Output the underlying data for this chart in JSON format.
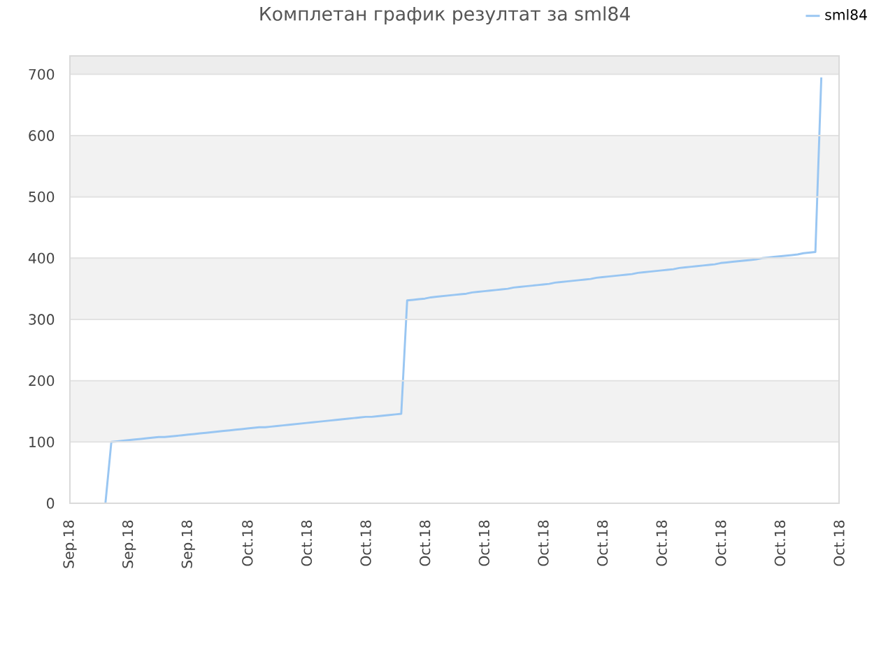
{
  "chart_data": {
    "type": "line",
    "title": "Комплетан график резултат за sml84",
    "categories": [
      "Sep.18",
      null,
      null,
      null,
      null,
      null,
      null,
      null,
      null,
      null,
      "Sep.18",
      null,
      null,
      null,
      null,
      null,
      null,
      null,
      null,
      null,
      "Sep.18",
      null,
      null,
      null,
      null,
      null,
      null,
      null,
      null,
      null,
      "Oct.18",
      null,
      null,
      null,
      null,
      null,
      null,
      null,
      null,
      null,
      "Oct.18",
      null,
      null,
      null,
      null,
      null,
      null,
      null,
      null,
      null,
      "Oct.18",
      null,
      null,
      null,
      null,
      null,
      null,
      null,
      null,
      null,
      "Oct.18",
      null,
      null,
      null,
      null,
      null,
      null,
      null,
      null,
      null,
      "Oct.18",
      null,
      null,
      null,
      null,
      null,
      null,
      null,
      null,
      null,
      "Oct.18",
      null,
      null,
      null,
      null,
      null,
      null,
      null,
      null,
      null,
      "Oct.18",
      null,
      null,
      null,
      null,
      null,
      null,
      null,
      null,
      null,
      "Oct.18",
      null,
      null,
      null,
      null,
      null,
      null,
      null,
      null,
      null,
      "Oct.18",
      null,
      null,
      null,
      null,
      null,
      null,
      null,
      null,
      null,
      "Oct.18",
      null,
      null,
      null,
      null,
      null,
      null,
      null,
      null,
      null,
      "Oct.18"
    ],
    "series": [
      {
        "name": "sml84",
        "color": "#99c6f2",
        "values": [
          null,
          null,
          null,
          null,
          null,
          null,
          0,
          100,
          101,
          102,
          103,
          104,
          105,
          106,
          107,
          108,
          108,
          109,
          110,
          111,
          112,
          113,
          114,
          115,
          116,
          117,
          118,
          119,
          120,
          121,
          122,
          123,
          124,
          124,
          125,
          126,
          127,
          128,
          129,
          130,
          131,
          132,
          133,
          134,
          135,
          136,
          137,
          138,
          139,
          140,
          141,
          141,
          142,
          143,
          144,
          145,
          146,
          331,
          332,
          333,
          334,
          336,
          337,
          338,
          339,
          340,
          341,
          342,
          344,
          345,
          346,
          347,
          348,
          349,
          350,
          352,
          353,
          354,
          355,
          356,
          357,
          358,
          360,
          361,
          362,
          363,
          364,
          365,
          366,
          368,
          369,
          370,
          371,
          372,
          373,
          374,
          376,
          377,
          378,
          379,
          380,
          381,
          382,
          384,
          385,
          386,
          387,
          388,
          389,
          390,
          392,
          393,
          394,
          395,
          396,
          397,
          398,
          400,
          401,
          402,
          403,
          404,
          405,
          406,
          408,
          409,
          410,
          695,
          null,
          null,
          null
        ]
      }
    ],
    "ylim": [
      0,
      730
    ],
    "yticks": [
      0,
      100,
      200,
      300,
      400,
      500,
      600,
      700
    ],
    "grid": "y",
    "legend": "top right",
    "marker": "none",
    "line_style": "solid",
    "bands": [
      {
        "axis": "y",
        "from": 100,
        "to": 200,
        "color": "#f2f2f2"
      },
      {
        "axis": "y",
        "from": 300,
        "to": 400,
        "color": "#f2f2f2"
      },
      {
        "axis": "y",
        "from": 500,
        "to": 600,
        "color": "#f2f2f2"
      },
      {
        "axis": "y",
        "from": 700,
        "to": 730,
        "color": "#ededed"
      }
    ]
  }
}
